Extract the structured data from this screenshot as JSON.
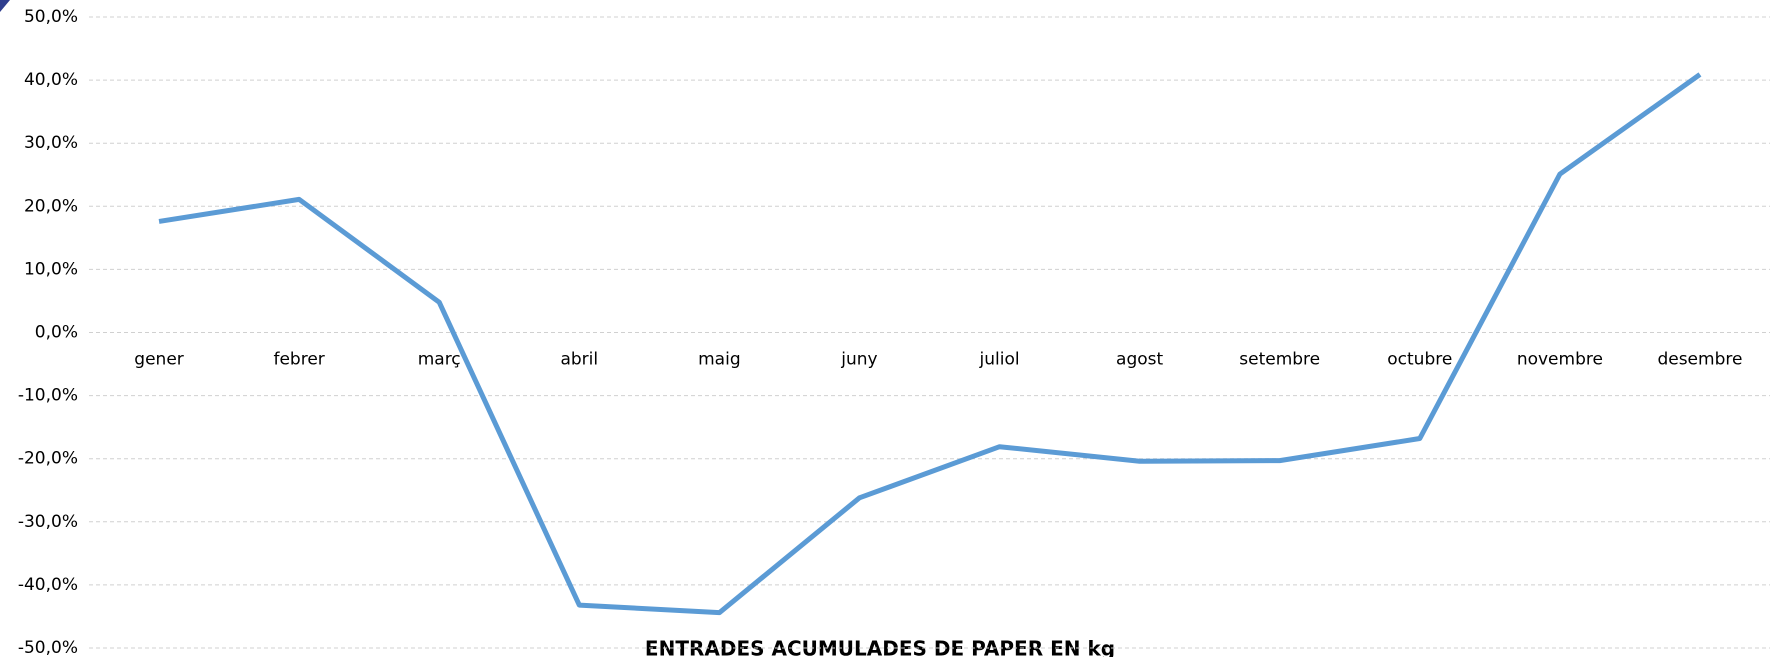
{
  "chart_data": {
    "type": "line",
    "title": "ENTRADES ACUMULADES DE PAPER EN kg",
    "categories": [
      "gener",
      "febrer",
      "març",
      "abril",
      "maig",
      "juny",
      "juliol",
      "agost",
      "setembre",
      "octubre",
      "novembre",
      "desembre"
    ],
    "series": [
      {
        "color": "#5b9bd5",
        "values": [
          17.6,
          21.1,
          4.8,
          -43.2,
          -44.4,
          -26.2,
          -18.1,
          -20.4,
          -20.3,
          -16.8,
          25.1,
          40.9
        ]
      }
    ],
    "ylim": [
      -50,
      50
    ],
    "yticks": [
      {
        "value": -50,
        "label": "-50,0%"
      },
      {
        "value": -40,
        "label": "-40,0%"
      },
      {
        "value": -30,
        "label": "-30,0%"
      },
      {
        "value": -20,
        "label": "-20,0%"
      },
      {
        "value": -10,
        "label": "-10,0%"
      },
      {
        "value": 0,
        "label": "0,0%"
      },
      {
        "value": 10,
        "label": "10,0%"
      },
      {
        "value": 20,
        "label": "20,0%"
      },
      {
        "value": 30,
        "label": "30,0%"
      },
      {
        "value": 40,
        "label": "40,0%"
      },
      {
        "value": 50,
        "label": "50,0%"
      }
    ],
    "grid": true
  }
}
